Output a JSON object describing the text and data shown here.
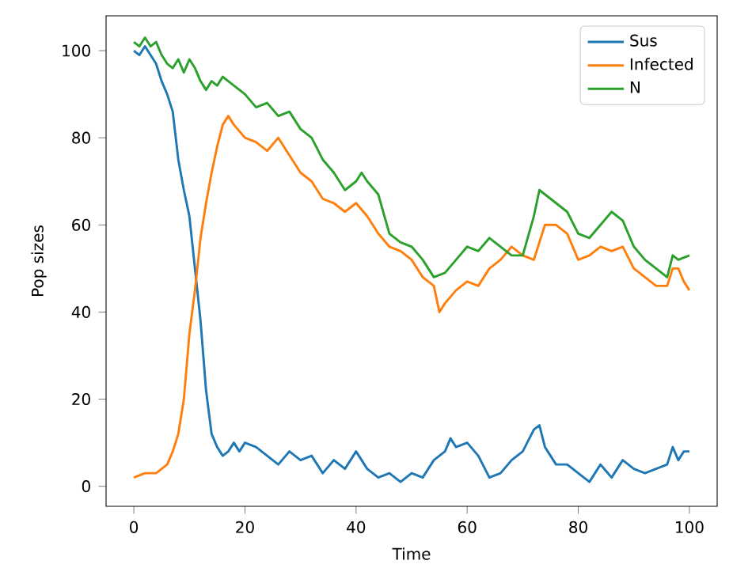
{
  "chart_data": {
    "type": "line",
    "xlabel": "Time",
    "ylabel": "Pop sizes",
    "xlim": [
      -5,
      105
    ],
    "ylim": [
      -4.6,
      108
    ],
    "xticks": [
      0,
      20,
      40,
      60,
      80,
      100
    ],
    "yticks": [
      0,
      20,
      40,
      60,
      80,
      100
    ],
    "grid": false,
    "legend": "top right",
    "marker": "none",
    "line_style": "solid",
    "series": [
      {
        "name": "Sus",
        "color": "#1f77b4",
        "x": [
          0,
          1,
          2,
          3,
          4,
          5,
          6,
          7,
          8,
          9,
          10,
          11,
          12,
          13,
          14,
          15,
          16,
          17,
          18,
          19,
          20,
          22,
          24,
          26,
          28,
          30,
          32,
          34,
          36,
          38,
          40,
          42,
          44,
          46,
          48,
          50,
          52,
          54,
          56,
          57,
          58,
          60,
          62,
          64,
          66,
          68,
          70,
          72,
          73,
          74,
          76,
          78,
          80,
          82,
          84,
          86,
          88,
          90,
          92,
          94,
          96,
          97,
          98,
          99,
          100
        ],
        "values": [
          100,
          99,
          101,
          99,
          97,
          93,
          90,
          86,
          75,
          68,
          62,
          50,
          38,
          22,
          12,
          9,
          7,
          8,
          10,
          8,
          10,
          9,
          7,
          5,
          8,
          6,
          7,
          3,
          6,
          4,
          8,
          4,
          2,
          3,
          1,
          3,
          2,
          6,
          8,
          11,
          9,
          10,
          7,
          2,
          3,
          6,
          8,
          13,
          14,
          9,
          5,
          5,
          3,
          1,
          5,
          2,
          6,
          4,
          3,
          4,
          5,
          9,
          6,
          8,
          8
        ]
      },
      {
        "name": "Infected",
        "color": "#ff7f0e",
        "x": [
          0,
          2,
          4,
          6,
          7,
          8,
          9,
          10,
          11,
          12,
          13,
          14,
          15,
          16,
          17,
          18,
          20,
          22,
          24,
          26,
          28,
          30,
          32,
          34,
          36,
          38,
          40,
          42,
          44,
          46,
          48,
          50,
          52,
          54,
          55,
          56,
          58,
          60,
          62,
          64,
          66,
          68,
          70,
          72,
          74,
          76,
          78,
          80,
          82,
          84,
          86,
          88,
          90,
          92,
          94,
          96,
          97,
          98,
          99,
          100
        ],
        "values": [
          2,
          3,
          3,
          5,
          8,
          12,
          20,
          35,
          45,
          57,
          65,
          72,
          78,
          83,
          85,
          83,
          80,
          79,
          77,
          80,
          76,
          72,
          70,
          66,
          65,
          63,
          65,
          62,
          58,
          55,
          54,
          52,
          48,
          46,
          40,
          42,
          45,
          47,
          46,
          50,
          52,
          55,
          53,
          52,
          60,
          60,
          58,
          52,
          53,
          55,
          54,
          55,
          50,
          48,
          46,
          46,
          50,
          50,
          47,
          45
        ]
      },
      {
        "name": "N",
        "color": "#2ca02c",
        "x": [
          0,
          1,
          2,
          3,
          4,
          5,
          6,
          7,
          8,
          9,
          10,
          11,
          12,
          13,
          14,
          15,
          16,
          18,
          20,
          22,
          24,
          26,
          28,
          30,
          32,
          34,
          36,
          38,
          40,
          41,
          42,
          44,
          46,
          48,
          50,
          52,
          54,
          56,
          58,
          60,
          62,
          64,
          66,
          68,
          70,
          72,
          73,
          74,
          76,
          78,
          80,
          82,
          84,
          86,
          88,
          90,
          92,
          94,
          96,
          97,
          98,
          100
        ],
        "values": [
          102,
          101,
          103,
          101,
          102,
          99,
          97,
          96,
          98,
          95,
          98,
          96,
          93,
          91,
          93,
          92,
          94,
          92,
          90,
          87,
          88,
          85,
          86,
          82,
          80,
          75,
          72,
          68,
          70,
          72,
          70,
          67,
          58,
          56,
          55,
          52,
          48,
          49,
          52,
          55,
          54,
          57,
          55,
          53,
          53,
          62,
          68,
          67,
          65,
          63,
          58,
          57,
          60,
          63,
          61,
          55,
          52,
          50,
          48,
          53,
          52,
          53
        ]
      }
    ]
  }
}
